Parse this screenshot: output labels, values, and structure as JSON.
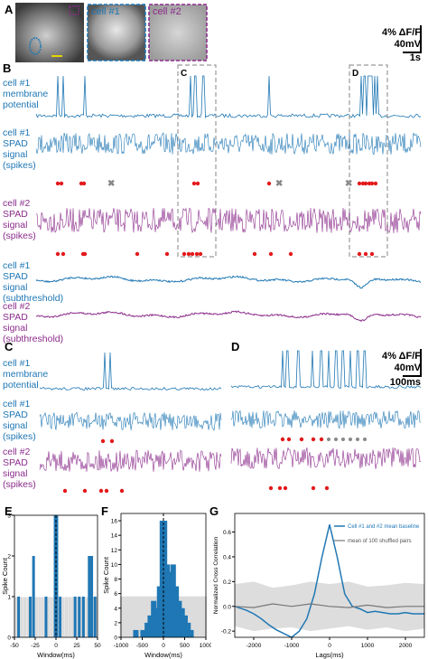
{
  "panel_labels": {
    "a": "A",
    "b": "B",
    "c": "C",
    "d": "D",
    "e": "E",
    "f": "F",
    "g": "G"
  },
  "panel_a": {
    "cell1_label": "cell #1",
    "cell2_label": "cell #2"
  },
  "scale_a": {
    "dff": "4% ΔF/F",
    "mv": "40mV",
    "time": "1s"
  },
  "scale_cd": {
    "dff": "4% ΔF/F",
    "mv": "40mV",
    "time": "100ms"
  },
  "boxes": {
    "c": "C",
    "d": "D"
  },
  "trace_labels_b": [
    {
      "lines": [
        "cell #1",
        "membrane",
        "potential"
      ]
    },
    {
      "lines": [
        "cell #1",
        "SPAD",
        "signal",
        "(spikes)"
      ]
    },
    {
      "lines": [
        "cell #2",
        "SPAD",
        "signal",
        "(spikes)"
      ]
    },
    {
      "lines": [
        "cell #1",
        "SPAD",
        "signal",
        "(subthreshold)"
      ]
    },
    {
      "lines": [
        "cell #2",
        "SPAD",
        "signal",
        "(subthreshold)"
      ]
    }
  ],
  "trace_labels_c": [
    {
      "lines": [
        "cell #1",
        "membrane",
        "potential"
      ]
    },
    {
      "lines": [
        "cell #1",
        "SPAD",
        "signal",
        "(spikes)"
      ]
    },
    {
      "lines": [
        "cell #2",
        "SPAD",
        "signal",
        "(spikes)"
      ]
    }
  ],
  "colors": {
    "cell1": "#1f77b4",
    "cell2": "#8b2c8b",
    "detect": "#e31a1c",
    "missed": "#888888"
  },
  "chart_data": [
    {
      "type": "bar",
      "panel": "E",
      "xlabel": "Window(ms)",
      "ylabel": "Spike Count",
      "x_ticks": [
        "-50",
        "-25",
        "0",
        "25",
        "50"
      ],
      "y_ticks": [
        "0",
        "1",
        "2",
        "3"
      ],
      "xlim": [
        -50,
        50
      ],
      "ylim": [
        0,
        3
      ],
      "bars": [
        {
          "x": -45,
          "y": 1
        },
        {
          "x": -31,
          "y": 1
        },
        {
          "x": -27,
          "y": 2
        },
        {
          "x": -12,
          "y": 1
        },
        {
          "x": -1,
          "y": 3
        },
        {
          "x": 1,
          "y": 3
        },
        {
          "x": 5,
          "y": 1
        },
        {
          "x": 23,
          "y": 1
        },
        {
          "x": 28,
          "y": 1
        },
        {
          "x": 33,
          "y": 1
        },
        {
          "x": 40,
          "y": 2
        },
        {
          "x": 43,
          "y": 2
        },
        {
          "x": 47,
          "y": 1
        }
      ]
    },
    {
      "type": "bar",
      "panel": "F",
      "xlabel": "Window(ms)",
      "ylabel": "Spike Count",
      "x_ticks": [
        "-1000",
        "-500",
        "0",
        "500",
        "1000"
      ],
      "y_ticks": [
        "0",
        "2",
        "4",
        "6",
        "8",
        "10",
        "12",
        "14",
        "16"
      ],
      "xlim": [
        -1000,
        1000
      ],
      "ylim": [
        0,
        17
      ],
      "bars": [
        {
          "x": -650,
          "y": 1
        },
        {
          "x": -480,
          "y": 1
        },
        {
          "x": -380,
          "y": 2
        },
        {
          "x": -310,
          "y": 3
        },
        {
          "x": -230,
          "y": 5
        },
        {
          "x": -160,
          "y": 4
        },
        {
          "x": -90,
          "y": 7
        },
        {
          "x": -25,
          "y": 16
        },
        {
          "x": 25,
          "y": 16
        },
        {
          "x": 90,
          "y": 10
        },
        {
          "x": 160,
          "y": 9
        },
        {
          "x": 230,
          "y": 10
        },
        {
          "x": 300,
          "y": 7
        },
        {
          "x": 370,
          "y": 5
        },
        {
          "x": 440,
          "y": 4
        },
        {
          "x": 510,
          "y": 3
        },
        {
          "x": 580,
          "y": 2
        },
        {
          "x": 650,
          "y": 1
        }
      ]
    },
    {
      "type": "line",
      "panel": "G",
      "xlabel": "Lags(ms)",
      "ylabel": "Normalized Cross Correlation",
      "x_ticks": [
        "-2000",
        "-1000",
        "0",
        "1000",
        "2000"
      ],
      "y_ticks": [
        "-0.2",
        "0.0",
        "0.2",
        "0.4",
        "0.6"
      ],
      "xlim": [
        -2500,
        2500
      ],
      "ylim": [
        -0.25,
        0.75
      ],
      "series": [
        {
          "name": "Cell #1 and #2 mean baseline",
          "color": "#1f77b4",
          "x": [
            -2500,
            -2200,
            -2000,
            -1800,
            -1600,
            -1400,
            -1200,
            -1000,
            -800,
            -600,
            -400,
            -200,
            0,
            200,
            400,
            600,
            800,
            1000,
            1200,
            1400,
            1600,
            1800,
            2000,
            2200,
            2500
          ],
          "y": [
            0.0,
            -0.03,
            -0.06,
            -0.1,
            -0.15,
            -0.19,
            -0.22,
            -0.25,
            -0.2,
            -0.1,
            0.1,
            0.4,
            0.66,
            0.4,
            0.1,
            0.0,
            -0.02,
            -0.05,
            -0.04,
            -0.05,
            -0.06,
            -0.06,
            -0.05,
            -0.06,
            -0.06
          ]
        },
        {
          "name": "mean of 100 shuffled pairs",
          "color": "#777777",
          "x": [
            -2500,
            -2000,
            -1500,
            -1000,
            -500,
            0,
            500,
            1000,
            1500,
            2000,
            2500
          ],
          "y": [
            0.0,
            -0.01,
            0.02,
            0.0,
            0.02,
            0.0,
            -0.01,
            0.01,
            -0.01,
            0.0,
            0.0
          ]
        }
      ],
      "band": {
        "x": [
          -2500,
          -2000,
          -1500,
          -1000,
          -500,
          0,
          500,
          1000,
          1500,
          2000,
          2500
        ],
        "upper": [
          0.18,
          0.2,
          0.15,
          0.17,
          0.2,
          0.18,
          0.2,
          0.16,
          0.17,
          0.19,
          0.18
        ],
        "lower": [
          -0.16,
          -0.2,
          -0.18,
          -0.17,
          -0.2,
          -0.18,
          -0.16,
          -0.19,
          -0.17,
          -0.2,
          -0.18
        ]
      }
    }
  ]
}
